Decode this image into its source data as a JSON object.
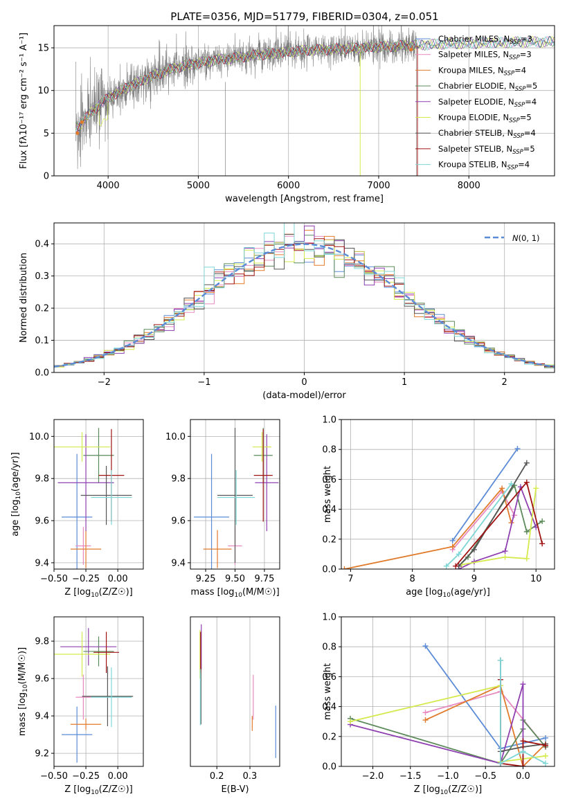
{
  "title": "PLATE=0356, MJD=51779, FIBERID=0304, z=0.051",
  "colors": {
    "chabrier_miles": "#5b8bd6",
    "salpeter_miles": "#e889bf",
    "kroupa_miles": "#e07b2c",
    "chabrier_elodie": "#5c8a5a",
    "salpeter_elodie": "#8e3fb0",
    "kroupa_elodie": "#d4ea4c",
    "chabrier_stelib": "#555555",
    "salpeter_stelib": "#a01212",
    "kroupa_stelib": "#7ed6d6",
    "data": "#808080",
    "normal": "#5b8bd6"
  },
  "legend": [
    {
      "key": "chabrier_miles",
      "label": "Chabrier MILES, N",
      "sub": "SSP",
      "tail": "=3"
    },
    {
      "key": "salpeter_miles",
      "label": "Salpeter MILES, N",
      "sub": "SSP",
      "tail": "=3"
    },
    {
      "key": "kroupa_miles",
      "label": "Kroupa MILES, N",
      "sub": "SSP",
      "tail": "=4"
    },
    {
      "key": "chabrier_elodie",
      "label": "Chabrier ELODIE, N",
      "sub": "SSP",
      "tail": "=5"
    },
    {
      "key": "salpeter_elodie",
      "label": "Salpeter ELODIE, N",
      "sub": "SSP",
      "tail": "=4"
    },
    {
      "key": "kroupa_elodie",
      "label": "Kroupa ELODIE, N",
      "sub": "SSP",
      "tail": "=5"
    },
    {
      "key": "chabrier_stelib",
      "label": "Chabrier STELIB, N",
      "sub": "SSP",
      "tail": "=4"
    },
    {
      "key": "salpeter_stelib",
      "label": "Salpeter STELIB, N",
      "sub": "SSP",
      "tail": "=5"
    },
    {
      "key": "kroupa_stelib",
      "label": "Kroupa STELIB, N",
      "sub": "SSP",
      "tail": "=4"
    }
  ],
  "chart_data": [
    {
      "id": "spectrum",
      "type": "line",
      "xlabel": "wavelength [Angstrom, rest frame]",
      "ylabel": "Flux [fλ10⁻¹⁷ erg cm⁻² s⁻¹ A⁻¹]",
      "xlim": [
        3400,
        8950
      ],
      "ylim": [
        0,
        17.6
      ],
      "xticks": [
        4000,
        5000,
        6000,
        7000,
        8000
      ],
      "yticks": [
        0,
        5,
        10,
        15
      ],
      "continuum": {
        "x": [
          3640,
          3700,
          3800,
          3900,
          4000,
          4200,
          4400,
          4600,
          4800,
          5000,
          5200,
          5400,
          5600,
          5800,
          6000,
          6200,
          6400,
          6600,
          6800,
          7000,
          7200,
          7400,
          7600,
          7800,
          8000,
          8200,
          8400,
          8600,
          8800,
          8950
        ],
        "y": [
          5.6,
          6.1,
          7.3,
          8.3,
          9.1,
          10.3,
          11.3,
          12.1,
          12.8,
          13.2,
          13.6,
          13.8,
          14.1,
          14.3,
          14.5,
          14.7,
          14.8,
          14.9,
          15.0,
          15.1,
          15.2,
          15.3,
          15.4,
          15.5,
          15.5,
          15.6,
          15.6,
          15.7,
          15.7,
          15.7
        ]
      },
      "data_range": [
        3640,
        7420
      ],
      "model_range": [
        3640,
        8950
      ]
    },
    {
      "id": "residuals",
      "type": "step",
      "xlabel": "(data-model)/error",
      "ylabel": "Normed distribution",
      "xlim": [
        -2.5,
        2.5
      ],
      "ylim": [
        0,
        0.465
      ],
      "xticks": [
        -2,
        -1,
        0,
        1,
        2
      ],
      "yticks": [
        0,
        0.1,
        0.2,
        0.3,
        0.4
      ],
      "bin_width": 0.1,
      "normal_curve": {
        "label": "N(0, 1)",
        "mean": 0,
        "sigma": 1
      }
    },
    {
      "id": "age-vs-Z",
      "type": "errorbar",
      "xlabel": "Z [log10(Z/Z☉)]",
      "ylabel": "age  [log10(age/yr)]",
      "xlim": [
        -0.5,
        0.2
      ],
      "ylim": [
        9.37,
        10.08
      ],
      "xticks": [
        -0.5,
        -0.25,
        0.0
      ],
      "yticks": [
        9.4,
        9.6,
        9.8,
        10.0
      ],
      "points": [
        {
          "key": "chabrier_miles",
          "x": -0.32,
          "y": 9.617,
          "xerr": 0.12,
          "yerr": 0.3
        },
        {
          "key": "salpeter_miles",
          "x": -0.27,
          "y": 9.48,
          "xerr": 0.06,
          "yerr": 0.09
        },
        {
          "key": "kroupa_miles",
          "x": -0.25,
          "y": 9.465,
          "xerr": 0.12,
          "yerr": 0.09
        },
        {
          "key": "chabrier_elodie",
          "x": -0.15,
          "y": 9.91,
          "xerr": 0.12,
          "yerr": 0.13
        },
        {
          "key": "salpeter_elodie",
          "x": -0.25,
          "y": 9.78,
          "xerr": 0.22,
          "yerr": 0.23
        },
        {
          "key": "kroupa_elodie",
          "x": -0.28,
          "y": 9.95,
          "xerr": 0.22,
          "yerr": 0.07
        },
        {
          "key": "chabrier_stelib",
          "x": -0.09,
          "y": 9.72,
          "xerr": 0.2,
          "yerr": 0.14
        },
        {
          "key": "salpeter_stelib",
          "x": -0.05,
          "y": 9.815,
          "xerr": 0.1,
          "yerr": 0.22
        },
        {
          "key": "kroupa_stelib",
          "x": -0.05,
          "y": 9.71,
          "xerr": 0.16,
          "yerr": 0.13
        }
      ]
    },
    {
      "id": "age-vs-mass",
      "type": "errorbar",
      "xlabel": "mass [log10(M/M☉)]",
      "ylabel": "",
      "xlim": [
        9.12,
        9.88
      ],
      "ylim": [
        9.37,
        10.08
      ],
      "xticks": [
        9.25,
        9.5,
        9.75
      ],
      "yticks": [
        9.4,
        9.6,
        9.8,
        10.0
      ],
      "points": [
        {
          "key": "chabrier_miles",
          "x": 9.3,
          "y": 9.617,
          "xerr": 0.15,
          "yerr": 0.3
        },
        {
          "key": "salpeter_miles",
          "x": 9.5,
          "y": 9.48,
          "xerr": 0.06,
          "yerr": 0.09
        },
        {
          "key": "kroupa_miles",
          "x": 9.35,
          "y": 9.465,
          "xerr": 0.12,
          "yerr": 0.09
        },
        {
          "key": "chabrier_elodie",
          "x": 9.74,
          "y": 9.91,
          "xerr": 0.08,
          "yerr": 0.13
        },
        {
          "key": "salpeter_elodie",
          "x": 9.77,
          "y": 9.78,
          "xerr": 0.1,
          "yerr": 0.23
        },
        {
          "key": "kroupa_elodie",
          "x": 9.73,
          "y": 9.95,
          "xerr": 0.08,
          "yerr": 0.07
        },
        {
          "key": "chabrier_stelib",
          "x": 9.5,
          "y": 9.72,
          "xerr": 0.15,
          "yerr": 0.32
        },
        {
          "key": "salpeter_stelib",
          "x": 9.74,
          "y": 9.815,
          "xerr": 0.08,
          "yerr": 0.22
        },
        {
          "key": "kroupa_stelib",
          "x": 9.51,
          "y": 9.71,
          "xerr": 0.16,
          "yerr": 0.13
        }
      ]
    },
    {
      "id": "massweight-vs-age",
      "type": "line",
      "xlabel": "age  [log10(age/yr)]",
      "ylabel": "mass weight",
      "xlim": [
        6.85,
        10.3
      ],
      "ylim": [
        0,
        1.0
      ],
      "xticks": [
        7,
        8,
        9,
        10
      ],
      "yticks": [
        0.0,
        0.2,
        0.4,
        0.6,
        0.8,
        1.0
      ],
      "series": [
        {
          "key": "chabrier_miles",
          "x": [
            8.65,
            9.7
          ],
          "y": [
            0.19,
            0.805
          ]
        },
        {
          "key": "salpeter_miles",
          "x": [
            8.65,
            9.45,
            9.65
          ],
          "y": [
            0.13,
            0.52,
            0.36
          ]
        },
        {
          "key": "kroupa_miles",
          "x": [
            6.9,
            8.65,
            9.45,
            9.6
          ],
          "y": [
            0.0,
            0.15,
            0.54,
            0.31
          ]
        },
        {
          "key": "chabrier_elodie",
          "x": [
            8.75,
            8.9,
            9.65,
            9.85,
            10.1
          ],
          "y": [
            0.02,
            0.08,
            0.56,
            0.25,
            0.32
          ]
        },
        {
          "key": "salpeter_elodie",
          "x": [
            8.75,
            9.0,
            9.5,
            9.75,
            10.0
          ],
          "y": [
            0.0,
            0.05,
            0.12,
            0.55,
            0.28
          ]
        },
        {
          "key": "kroupa_elodie",
          "x": [
            8.8,
            9.5,
            9.85,
            10.0
          ],
          "y": [
            0.03,
            0.08,
            0.07,
            0.54
          ]
        },
        {
          "key": "chabrier_stelib",
          "x": [
            8.75,
            9.0,
            9.85
          ],
          "y": [
            0.02,
            0.13,
            0.71
          ]
        },
        {
          "key": "salpeter_stelib",
          "x": [
            8.7,
            9.85,
            10.1
          ],
          "y": [
            0.02,
            0.58,
            0.17
          ]
        },
        {
          "key": "kroupa_stelib",
          "x": [
            8.55,
            8.75,
            9.6
          ],
          "y": [
            0.02,
            0.1,
            0.57
          ]
        }
      ]
    },
    {
      "id": "mass-vs-Z",
      "type": "errorbar",
      "xlabel": "Z [log10(Z/Z☉)]",
      "ylabel": "mass [log10(M/M☉)]",
      "xlim": [
        -0.5,
        0.2
      ],
      "ylim": [
        9.13,
        9.93
      ],
      "xticks": [
        -0.5,
        -0.25,
        0.0
      ],
      "yticks": [
        9.2,
        9.4,
        9.6,
        9.8
      ],
      "points": [
        {
          "key": "chabrier_miles",
          "x": -0.32,
          "y": 9.3,
          "xerr": 0.12,
          "yerr": 0.15
        },
        {
          "key": "salpeter_miles",
          "x": -0.27,
          "y": 9.5,
          "xerr": 0.06,
          "yerr": 0.12
        },
        {
          "key": "kroupa_miles",
          "x": -0.25,
          "y": 9.355,
          "xerr": 0.12,
          "yerr": 0.03
        },
        {
          "key": "chabrier_elodie",
          "x": -0.15,
          "y": 9.745,
          "xerr": 0.12,
          "yerr": 0.08
        },
        {
          "key": "salpeter_elodie",
          "x": -0.23,
          "y": 9.77,
          "xerr": 0.22,
          "yerr": 0.1
        },
        {
          "key": "kroupa_elodie",
          "x": -0.28,
          "y": 9.73,
          "xerr": 0.22,
          "yerr": 0.12
        },
        {
          "key": "chabrier_stelib",
          "x": -0.08,
          "y": 9.505,
          "xerr": 0.2,
          "yerr": 0.16
        },
        {
          "key": "salpeter_stelib",
          "x": -0.09,
          "y": 9.74,
          "xerr": 0.1,
          "yerr": 0.11
        },
        {
          "key": "kroupa_stelib",
          "x": -0.05,
          "y": 9.5,
          "xerr": 0.16,
          "yerr": 0.16
        }
      ]
    },
    {
      "id": "mass-vs-EBV",
      "type": "errorbar",
      "xlabel": "E(B-V)",
      "ylabel": "",
      "xlim": [
        0.12,
        0.39
      ],
      "ylim": [
        9.13,
        9.93
      ],
      "xticks": [
        0.2,
        0.3
      ],
      "points": [
        {
          "key": "chabrier_miles",
          "x": 0.378,
          "y": 9.315,
          "yerr": 0.14
        },
        {
          "key": "salpeter_miles",
          "x": 0.31,
          "y": 9.5,
          "yerr": 0.12
        },
        {
          "key": "kroupa_miles",
          "x": 0.307,
          "y": 9.36,
          "yerr": 0.04
        },
        {
          "key": "chabrier_elodie",
          "x": 0.151,
          "y": 9.745,
          "yerr": 0.1
        },
        {
          "key": "salpeter_elodie",
          "x": 0.153,
          "y": 9.77,
          "yerr": 0.12
        },
        {
          "key": "kroupa_elodie",
          "x": 0.149,
          "y": 9.73,
          "yerr": 0.13
        },
        {
          "key": "chabrier_stelib",
          "x": 0.152,
          "y": 9.505,
          "yerr": 0.15
        },
        {
          "key": "salpeter_stelib",
          "x": 0.151,
          "y": 9.74,
          "yerr": 0.11
        },
        {
          "key": "kroupa_stelib",
          "x": 0.15,
          "y": 9.5,
          "yerr": 0.15
        }
      ]
    },
    {
      "id": "massweight-vs-Z",
      "type": "line",
      "xlabel": "Z [log10(Z/Z☉)]",
      "ylabel": "mass weight",
      "xlim": [
        -2.42,
        0.42
      ],
      "ylim": [
        0,
        1.0
      ],
      "xticks": [
        -2.0,
        -1.5,
        -1.0,
        -0.5,
        0.0
      ],
      "yticks": [
        0.0,
        0.2,
        0.4,
        0.6,
        0.8,
        1.0
      ],
      "series": [
        {
          "key": "chabrier_miles",
          "x": [
            -1.3,
            -0.3,
            0.3
          ],
          "y": [
            0.805,
            0.12,
            0.19
          ]
        },
        {
          "key": "salpeter_miles",
          "x": [
            -1.3,
            -0.3,
            0.3
          ],
          "y": [
            0.36,
            0.5,
            0.13
          ]
        },
        {
          "key": "kroupa_miles",
          "x": [
            -1.3,
            -0.3,
            0.0,
            0.3
          ],
          "y": [
            0.31,
            0.54,
            0.0,
            0.15
          ]
        },
        {
          "key": "chabrier_elodie",
          "x": [
            -2.3,
            -0.3,
            0.0,
            0.0,
            0.3
          ],
          "y": [
            0.32,
            0.02,
            0.25,
            0.31,
            0.13
          ]
        },
        {
          "key": "salpeter_elodie",
          "x": [
            -2.3,
            -0.3,
            0.0,
            0.0
          ],
          "y": [
            0.28,
            0.02,
            0.55,
            0.0
          ]
        },
        {
          "key": "kroupa_elodie",
          "x": [
            -2.3,
            -0.3,
            -0.3,
            0.3
          ],
          "y": [
            0.3,
            0.54,
            0.03,
            0.07
          ]
        },
        {
          "key": "chabrier_stelib",
          "x": [
            -0.3,
            -0.3,
            0.0,
            0.3
          ],
          "y": [
            0.71,
            0.1,
            0.13,
            0.15
          ]
        },
        {
          "key": "salpeter_stelib",
          "x": [
            -0.3,
            -0.3,
            0.0,
            0.0,
            0.3
          ],
          "y": [
            0.58,
            0.02,
            0.0,
            0.17,
            0.14
          ]
        },
        {
          "key": "kroupa_stelib",
          "x": [
            -0.3,
            -0.3,
            0.0,
            0.3
          ],
          "y": [
            0.71,
            0.02,
            0.1,
            0.02
          ]
        }
      ]
    }
  ]
}
